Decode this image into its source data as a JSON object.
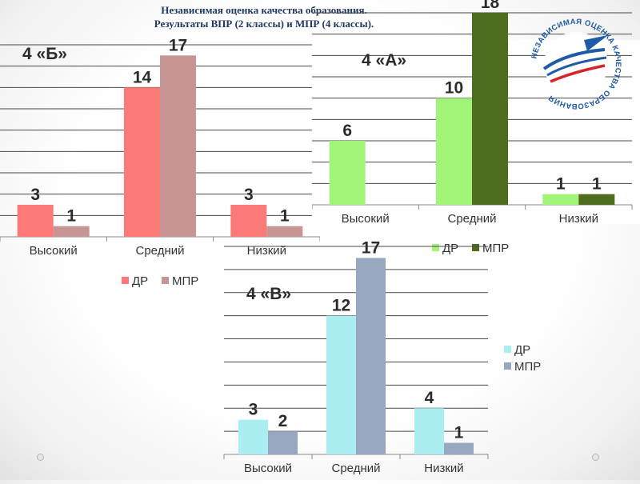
{
  "title": {
    "line1": "Независимая оценка качества образования.",
    "line2": "Результаты ВПР (2 классы) и МПР (4 классы)."
  },
  "logo": {
    "icon": "quality-assessment-logo",
    "text": "НЕЗАВИСИМАЯ ОЦЕНКА КАЧЕСТВА ОБРАЗОВАНИЯ"
  },
  "colors": {
    "b_dr": "#fb7a77",
    "b_mpr": "#c69594",
    "a_dr": "#a2f479",
    "a_mpr": "#4e6c1d",
    "v_dr": "#aaeef2",
    "v_mpr": "#97a7bf",
    "label": "#2b2b2b",
    "title": "#1f3864"
  },
  "chart_data": [
    {
      "type": "bar",
      "title": "4 «Б»",
      "categories": [
        "Высокий",
        "Средний",
        "Низкий"
      ],
      "series": [
        {
          "name": "ДР",
          "values": [
            3,
            14,
            3
          ]
        },
        {
          "name": "МПР",
          "values": [
            1,
            17,
            1
          ]
        }
      ],
      "ylim": [
        0,
        18
      ],
      "grid": true,
      "legend": "bottom"
    },
    {
      "type": "bar",
      "title": "4 «А»",
      "categories": [
        "Высокий",
        "Средний",
        "Низкий"
      ],
      "series": [
        {
          "name": "ДР",
          "values": [
            6,
            10,
            1
          ]
        },
        {
          "name": "МПР",
          "values": [
            null,
            18,
            1
          ]
        }
      ],
      "ylim": [
        0,
        18
      ],
      "grid": true,
      "legend": "bottom"
    },
    {
      "type": "bar",
      "title": "4 «В»",
      "categories": [
        "Высокий",
        "Средний",
        "Низкий"
      ],
      "series": [
        {
          "name": "ДР",
          "values": [
            3,
            12,
            4
          ]
        },
        {
          "name": "МПР",
          "values": [
            2,
            17,
            1
          ]
        }
      ],
      "ylim": [
        0,
        18
      ],
      "grid": true,
      "legend": "right"
    }
  ]
}
